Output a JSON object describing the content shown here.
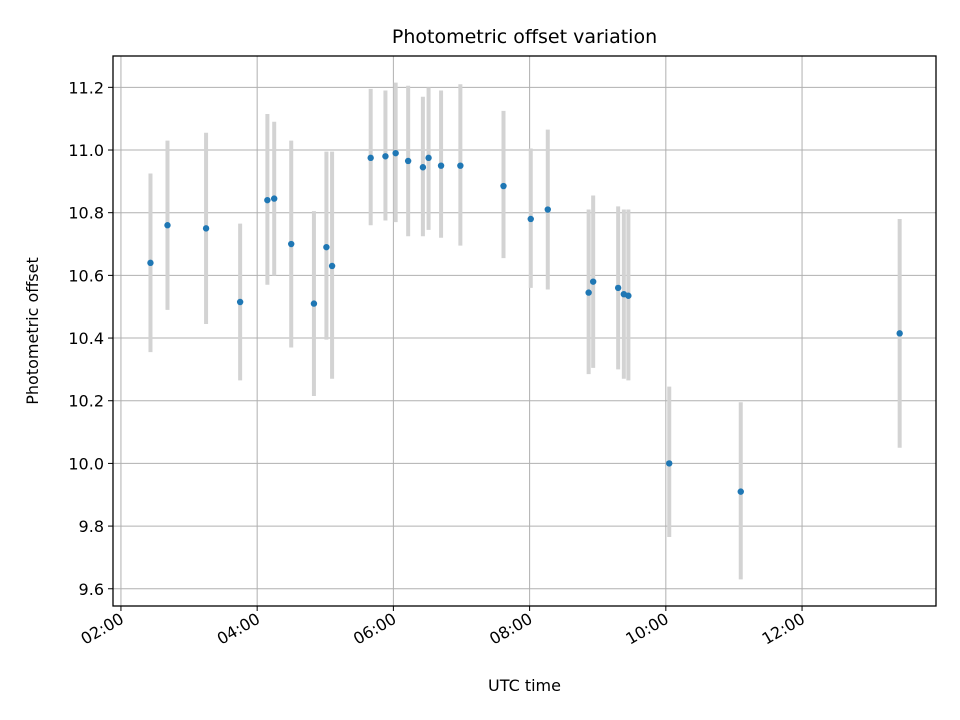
{
  "chart_data": {
    "type": "scatter",
    "title": "Photometric offset variation",
    "xlabel": "UTC time",
    "ylabel": "Photometric offset",
    "xlim": [
      "01:53",
      "13:58"
    ],
    "ylim": [
      9.545,
      11.3
    ],
    "x_ticks": [
      "02:00",
      "04:00",
      "06:00",
      "08:00",
      "10:00",
      "12:00"
    ],
    "y_ticks": [
      "9.6",
      "9.8",
      "10.0",
      "10.2",
      "10.4",
      "10.6",
      "10.8",
      "11.0",
      "11.2"
    ],
    "grid": true,
    "marker_color": "#1f77b4",
    "errorbar_color": "#d3d3d3",
    "points": [
      {
        "t": "02:26",
        "y": 10.64,
        "err_low": 10.355,
        "err_high": 10.925
      },
      {
        "t": "02:41",
        "y": 10.76,
        "err_low": 10.49,
        "err_high": 11.03
      },
      {
        "t": "03:15",
        "y": 10.75,
        "err_low": 10.445,
        "err_high": 11.055
      },
      {
        "t": "03:45",
        "y": 10.515,
        "err_low": 10.265,
        "err_high": 10.765
      },
      {
        "t": "04:09",
        "y": 10.84,
        "err_low": 10.57,
        "err_high": 11.115
      },
      {
        "t": "04:15",
        "y": 10.845,
        "err_low": 10.6,
        "err_high": 11.09
      },
      {
        "t": "04:30",
        "y": 10.7,
        "err_low": 10.37,
        "err_high": 11.03
      },
      {
        "t": "04:50",
        "y": 10.51,
        "err_low": 10.215,
        "err_high": 10.805
      },
      {
        "t": "05:01",
        "y": 10.69,
        "err_low": 10.395,
        "err_high": 10.995
      },
      {
        "t": "05:06",
        "y": 10.63,
        "err_low": 10.27,
        "err_high": 10.995
      },
      {
        "t": "05:40",
        "y": 10.975,
        "err_low": 10.76,
        "err_high": 11.195
      },
      {
        "t": "05:53",
        "y": 10.98,
        "err_low": 10.775,
        "err_high": 11.19
      },
      {
        "t": "06:02",
        "y": 10.99,
        "err_low": 10.77,
        "err_high": 11.215
      },
      {
        "t": "06:13",
        "y": 10.965,
        "err_low": 10.725,
        "err_high": 11.205
      },
      {
        "t": "06:26",
        "y": 10.945,
        "err_low": 10.725,
        "err_high": 11.17
      },
      {
        "t": "06:31",
        "y": 10.975,
        "err_low": 10.745,
        "err_high": 11.2
      },
      {
        "t": "06:42",
        "y": 10.95,
        "err_low": 10.72,
        "err_high": 11.19
      },
      {
        "t": "06:59",
        "y": 10.95,
        "err_low": 10.695,
        "err_high": 11.21
      },
      {
        "t": "07:37",
        "y": 10.885,
        "err_low": 10.655,
        "err_high": 11.125
      },
      {
        "t": "08:01",
        "y": 10.78,
        "err_low": 10.56,
        "err_high": 11.005
      },
      {
        "t": "08:16",
        "y": 10.81,
        "err_low": 10.555,
        "err_high": 11.065
      },
      {
        "t": "08:52",
        "y": 10.545,
        "err_low": 10.285,
        "err_high": 10.81
      },
      {
        "t": "08:56",
        "y": 10.58,
        "err_low": 10.305,
        "err_high": 10.855
      },
      {
        "t": "09:18",
        "y": 10.56,
        "err_low": 10.3,
        "err_high": 10.82
      },
      {
        "t": "09:23",
        "y": 10.54,
        "err_low": 10.27,
        "err_high": 10.81
      },
      {
        "t": "09:27",
        "y": 10.535,
        "err_low": 10.265,
        "err_high": 10.81
      },
      {
        "t": "10:03",
        "y": 10.0,
        "err_low": 9.765,
        "err_high": 10.245
      },
      {
        "t": "11:06",
        "y": 9.91,
        "err_low": 9.63,
        "err_high": 10.195
      },
      {
        "t": "13:26",
        "y": 10.415,
        "err_low": 10.05,
        "err_high": 10.78
      }
    ]
  }
}
